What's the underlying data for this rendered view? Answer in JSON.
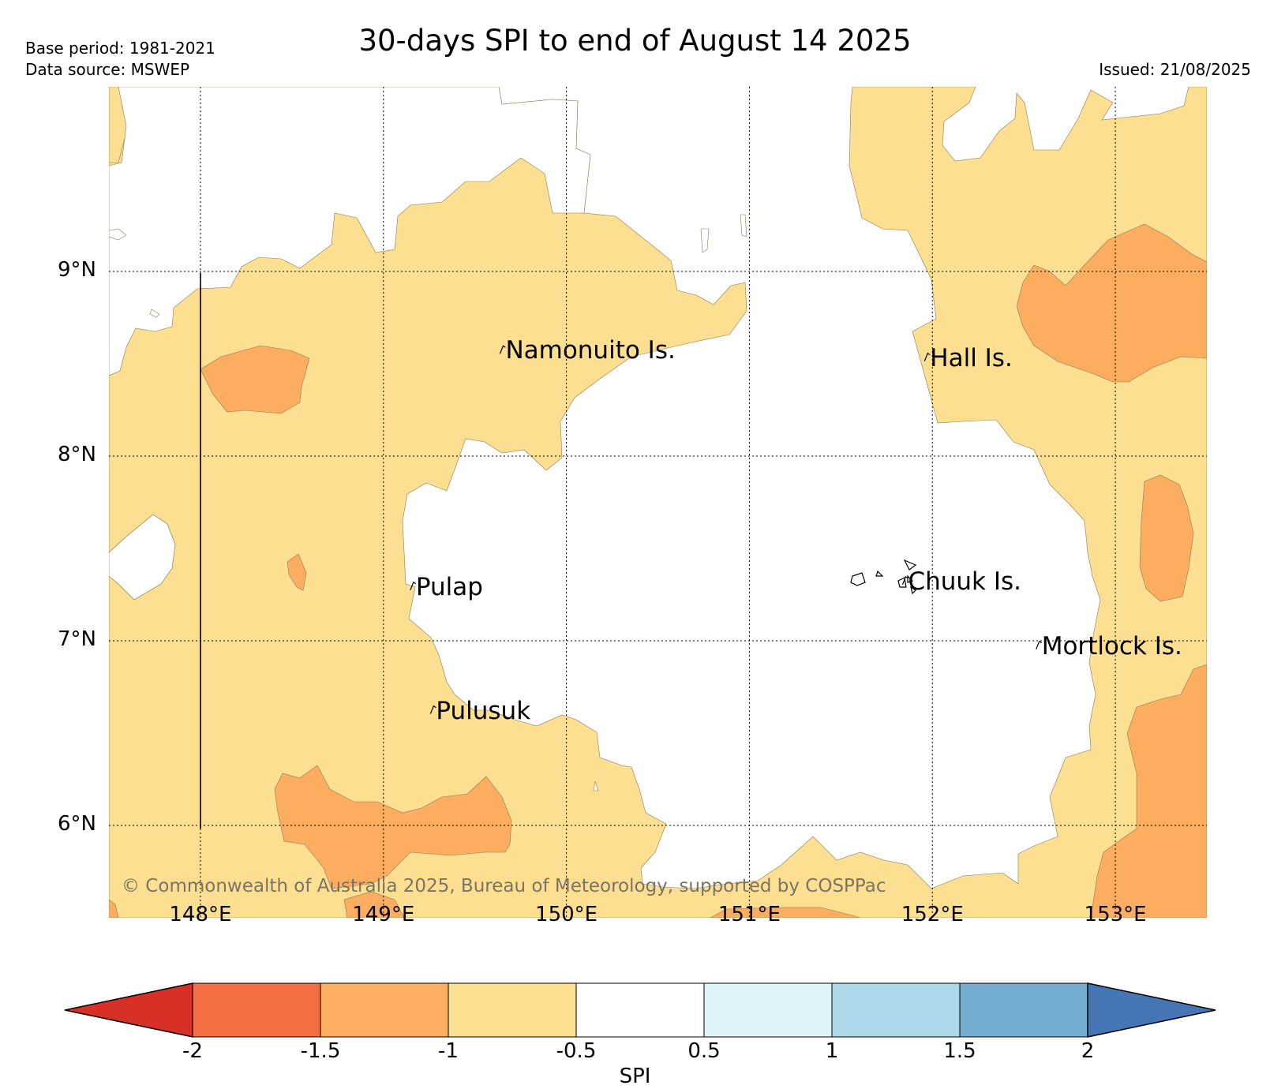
{
  "header": {
    "title": "30-days SPI to end of August 14 2025",
    "base_period": "Base period: 1981-2021",
    "data_source": "Data source: MSWEP",
    "issued": "Issued: 21/08/2025"
  },
  "map": {
    "lat_range": [
      5.5,
      10.0
    ],
    "lon_range": [
      147.5,
      153.5
    ],
    "lat_ticks": [
      {
        "value": 9,
        "label": "9°N"
      },
      {
        "value": 8,
        "label": "8°N"
      },
      {
        "value": 7,
        "label": "7°N"
      },
      {
        "value": 6,
        "label": "6°N"
      }
    ],
    "lon_ticks": [
      {
        "value": 148,
        "label": "148°E"
      },
      {
        "value": 149,
        "label": "149°E"
      },
      {
        "value": 150,
        "label": "150°E"
      },
      {
        "value": 151,
        "label": "151°E"
      },
      {
        "value": 152,
        "label": "152°E"
      },
      {
        "value": 153,
        "label": "153°E"
      }
    ],
    "places": [
      {
        "name": "Namonuito Is.",
        "lon": 149.65,
        "lat": 8.58
      },
      {
        "name": "Hall Is.",
        "lon": 151.97,
        "lat": 8.54
      },
      {
        "name": "Pulap",
        "lon": 149.16,
        "lat": 7.3
      },
      {
        "name": "Chuuk Is.",
        "lon": 151.85,
        "lat": 7.33
      },
      {
        "name": "Mortlock Is.",
        "lon": 152.58,
        "lat": 6.98
      },
      {
        "name": "Pulusuk",
        "lon": 149.27,
        "lat": 6.63
      }
    ],
    "fill_colors": {
      "ocean_land": "#ffffff",
      "below_-0.5": "#fddf91",
      "below_-1": "#fcad60"
    },
    "copyright": "© Commonwealth of Australia 2025, Bureau of Meteorology, supported by COSPPac"
  },
  "colorbar": {
    "label": "SPI",
    "ticks": [
      "-2",
      "-1.5",
      "-1",
      "-0.5",
      "0.5",
      "1",
      "1.5",
      "2"
    ],
    "colors": [
      "#d73027",
      "#f46d43",
      "#fdae61",
      "#fee090",
      "#ffffff",
      "#e0f3f8",
      "#abd9e9",
      "#74add1",
      "#4575b4"
    ]
  }
}
